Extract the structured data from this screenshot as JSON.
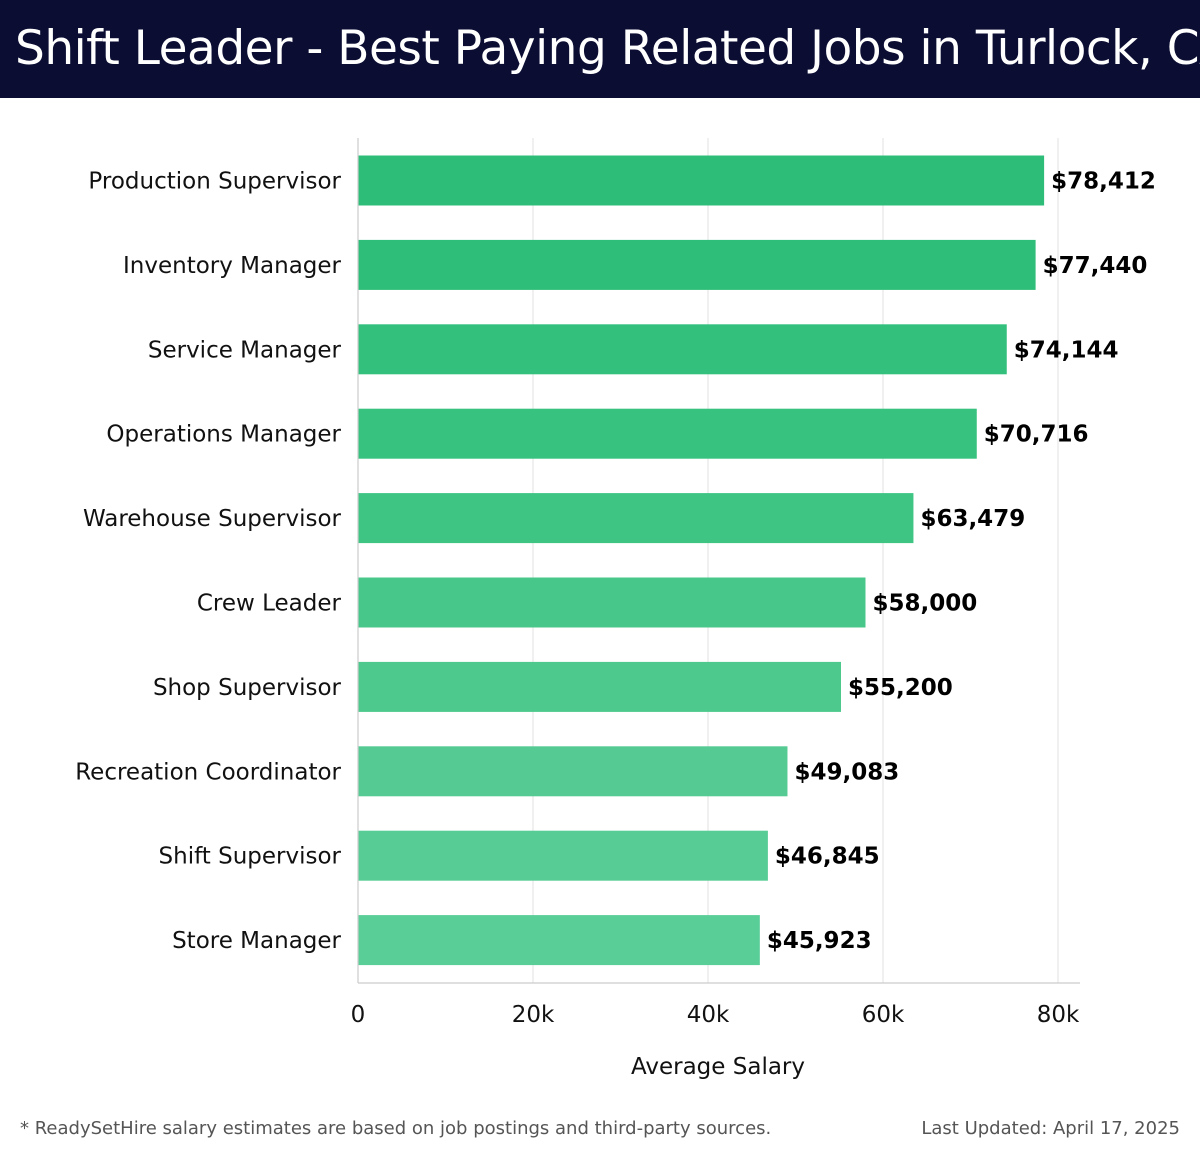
{
  "header": {
    "title": "Shift Leader - Best Paying Related Jobs in Turlock, CA"
  },
  "footer": {
    "note": "* ReadySetHire salary estimates are based on job postings and third-party sources.",
    "updated": "Last Updated: April 17, 2025"
  },
  "chart_data": {
    "type": "bar",
    "orientation": "horizontal",
    "title": "Shift Leader - Best Paying Related Jobs in Turlock, CA",
    "xlabel": "Average Salary",
    "ylabel": "",
    "xlim": [
      0,
      80000
    ],
    "x_ticks": [
      0,
      20000,
      40000,
      60000,
      80000
    ],
    "x_tick_labels": [
      "0",
      "20k",
      "40k",
      "60k",
      "80k"
    ],
    "grid": true,
    "categories": [
      "Production Supervisor",
      "Inventory Manager",
      "Service Manager",
      "Operations Manager",
      "Warehouse Supervisor",
      "Crew Leader",
      "Shop Supervisor",
      "Recreation Coordinator",
      "Shift Supervisor",
      "Store Manager"
    ],
    "values": [
      78412,
      77440,
      74144,
      70716,
      63479,
      58000,
      55200,
      49083,
      46845,
      45923
    ],
    "value_labels": [
      "$78,412",
      "$77,440",
      "$74,144",
      "$70,716",
      "$63,479",
      "$58,000",
      "$55,200",
      "$49,083",
      "$46,845",
      "$45,923"
    ],
    "bar_colors": [
      "#2ebd78",
      "#2fbe79",
      "#33c07c",
      "#37c27f",
      "#3ec584",
      "#48c78a",
      "#4dc98d",
      "#55cb93",
      "#58cc95",
      "#5ace97"
    ],
    "grid_color": "#e6e6e6",
    "axis_color": "#cccccc"
  }
}
